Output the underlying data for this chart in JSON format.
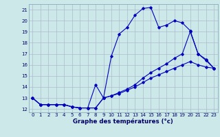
{
  "xlabel": "Graphe des températures (°c)",
  "bg_color": "#cce8e8",
  "grid_color": "#aabccc",
  "line_color": "#0000bb",
  "xlim": [
    -0.5,
    23.5
  ],
  "ylim": [
    11.7,
    21.5
  ],
  "yticks": [
    12,
    13,
    14,
    15,
    16,
    17,
    18,
    19,
    20,
    21
  ],
  "xticks": [
    0,
    1,
    2,
    3,
    4,
    5,
    6,
    7,
    8,
    9,
    10,
    11,
    12,
    13,
    14,
    15,
    16,
    17,
    18,
    19,
    20,
    21,
    22,
    23
  ],
  "series1_x": [
    0,
    1,
    2,
    3,
    4,
    5,
    6,
    7,
    8,
    9,
    10,
    11,
    12,
    13,
    14,
    15,
    16,
    17,
    18,
    19,
    20,
    21,
    22,
    23
  ],
  "series1_y": [
    13.0,
    12.4,
    12.4,
    12.4,
    12.4,
    12.2,
    12.1,
    12.1,
    14.2,
    13.0,
    16.8,
    18.8,
    19.4,
    20.5,
    21.1,
    21.2,
    19.4,
    19.6,
    20.0,
    19.8,
    19.1,
    17.0,
    16.4,
    15.7
  ],
  "series2_x": [
    0,
    1,
    2,
    3,
    4,
    5,
    6,
    7,
    8,
    9,
    10,
    11,
    12,
    13,
    14,
    15,
    16,
    17,
    18,
    19,
    20,
    21,
    22,
    23
  ],
  "series2_y": [
    13.0,
    12.4,
    12.4,
    12.4,
    12.4,
    12.2,
    12.1,
    12.1,
    12.1,
    13.0,
    13.2,
    13.5,
    13.8,
    14.2,
    14.8,
    15.3,
    15.7,
    16.1,
    16.6,
    17.0,
    19.0,
    17.0,
    16.5,
    15.7
  ],
  "series3_x": [
    0,
    1,
    2,
    3,
    4,
    5,
    6,
    7,
    8,
    9,
    10,
    11,
    12,
    13,
    14,
    15,
    16,
    17,
    18,
    19,
    20,
    21,
    22,
    23
  ],
  "series3_y": [
    13.0,
    12.4,
    12.4,
    12.4,
    12.4,
    12.2,
    12.1,
    12.1,
    12.1,
    13.0,
    13.2,
    13.4,
    13.7,
    14.0,
    14.4,
    14.8,
    15.1,
    15.4,
    15.7,
    16.0,
    16.3,
    16.0,
    15.8,
    15.7
  ],
  "tick_fontsize": 5.0,
  "xlabel_fontsize": 6.2,
  "tick_color": "#000066",
  "marker": "D",
  "markersize": 1.8,
  "linewidth": 0.8
}
